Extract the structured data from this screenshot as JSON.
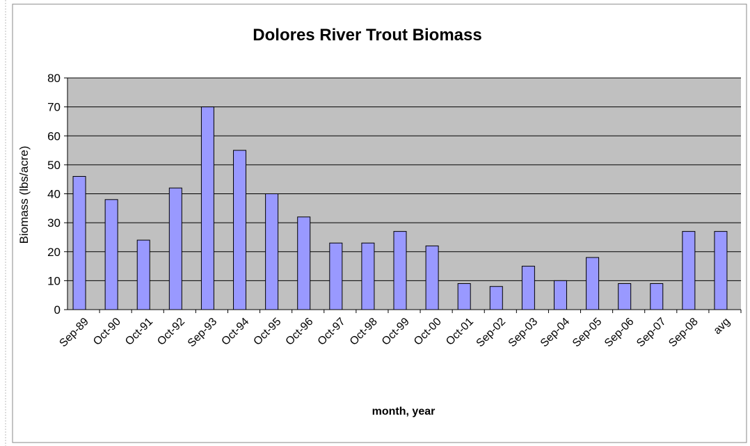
{
  "chart_data": {
    "type": "bar",
    "title": "Dolores River Trout Biomass",
    "x_label": "month, year",
    "y_label": "Biomass (lbs/acre)",
    "categories": [
      "Sep-89",
      "Oct-90",
      "Oct-91",
      "Oct-92",
      "Sep-93",
      "Oct-94",
      "Oct-95",
      "Oct-96",
      "Oct-97",
      "Oct-98",
      "Oct-99",
      "Oct-00",
      "Oct-01",
      "Sep-02",
      "Sep-03",
      "Sep-04",
      "Sep-05",
      "Sep-06",
      "Sep-07",
      "Sep-08",
      "avg"
    ],
    "values": [
      46,
      38,
      24,
      42,
      70,
      55,
      40,
      32,
      23,
      23,
      27,
      22,
      9,
      8,
      15,
      10,
      18,
      9,
      9,
      27,
      27
    ],
    "color": "#9999ff",
    "ylim": [
      0,
      80
    ],
    "yticks": [
      0,
      10,
      20,
      30,
      40,
      50,
      60,
      70,
      80
    ],
    "grid": true
  }
}
